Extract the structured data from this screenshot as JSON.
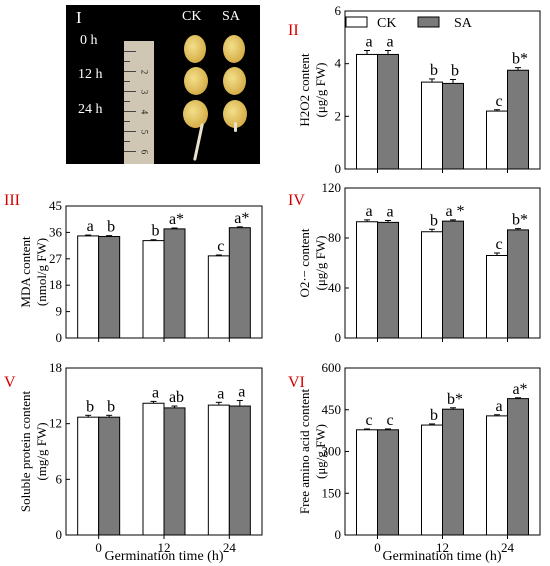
{
  "photo": {
    "panel_label": "I",
    "col_ck": "CK",
    "col_sa": "SA",
    "rows": [
      "0 h",
      "12 h",
      "24 h"
    ],
    "ruler_numbers": [
      "2",
      "3",
      "4",
      "5",
      "6"
    ]
  },
  "legend": {
    "ck": "CK",
    "sa": "SA"
  },
  "shared_xlabel": "Germination time (h)",
  "colors": {
    "ck": "#ffffff",
    "sa": "#7a7a7a",
    "panel_label": "#d40000",
    "axis": "#000000"
  },
  "chart_data": [
    {
      "type": "bar",
      "panel_label": "II",
      "categories": [
        "0",
        "12",
        "24"
      ],
      "ylabel_lines": [
        "H2O2 content",
        "(μg/g FW)"
      ],
      "ylim": [
        0,
        6
      ],
      "yticks": [
        0,
        2,
        4,
        6
      ],
      "series": [
        {
          "name": "CK",
          "values": [
            4.35,
            3.3,
            2.2
          ],
          "errors": [
            0.15,
            0.12,
            0.05
          ],
          "letters": [
            "a",
            "b",
            "c"
          ]
        },
        {
          "name": "SA",
          "values": [
            4.35,
            3.25,
            3.75
          ],
          "errors": [
            0.15,
            0.15,
            0.1
          ],
          "letters": [
            "a",
            "b",
            "b*"
          ]
        }
      ]
    },
    {
      "type": "bar",
      "panel_label": "III",
      "categories": [
        "0",
        "12",
        "24"
      ],
      "ylabel_lines": [
        "MDA content",
        "(nmol/g FW)"
      ],
      "ylim": [
        0,
        45
      ],
      "yticks": [
        0,
        9,
        18,
        27,
        36,
        45
      ],
      "series": [
        {
          "name": "CK",
          "values": [
            34.8,
            33.2,
            28.0
          ],
          "errors": [
            0.3,
            0.3,
            0.3
          ],
          "letters": [
            "a",
            "b",
            "c"
          ]
        },
        {
          "name": "SA",
          "values": [
            34.6,
            37.2,
            37.6
          ],
          "errors": [
            0.3,
            0.3,
            0.3
          ],
          "letters": [
            "b",
            "a*",
            "a*"
          ]
        }
      ]
    },
    {
      "type": "bar",
      "panel_label": "IV",
      "categories": [
        "0",
        "12",
        "24"
      ],
      "ylabel_lines": [
        "O2·− content",
        "(μg/g FW)"
      ],
      "ylim": [
        0,
        120
      ],
      "yticks": [
        0,
        40,
        80,
        120
      ],
      "series": [
        {
          "name": "CK",
          "values": [
            93,
            85,
            66
          ],
          "errors": [
            1.5,
            2,
            2
          ],
          "letters": [
            "a",
            "b",
            "c"
          ]
        },
        {
          "name": "SA",
          "values": [
            92.5,
            93.5,
            86.5
          ],
          "errors": [
            1.5,
            1,
            1
          ],
          "letters": [
            "a",
            "a *",
            "b*"
          ]
        }
      ]
    },
    {
      "type": "bar",
      "panel_label": "V",
      "categories": [
        "0",
        "12",
        "24"
      ],
      "ylabel_lines": [
        "Soluble protein content",
        "(mg/g FW)"
      ],
      "ylim": [
        0,
        18
      ],
      "yticks": [
        0,
        6,
        12,
        18
      ],
      "series": [
        {
          "name": "CK",
          "values": [
            12.7,
            14.2,
            14.0
          ],
          "errors": [
            0.2,
            0.2,
            0.3
          ],
          "letters": [
            "b",
            "a",
            "a"
          ]
        },
        {
          "name": "SA",
          "values": [
            12.7,
            13.7,
            13.9
          ],
          "errors": [
            0.2,
            0.2,
            0.6
          ],
          "letters": [
            "b",
            "ab",
            "a"
          ]
        }
      ]
    },
    {
      "type": "bar",
      "panel_label": "VI",
      "categories": [
        "0",
        "12",
        "24"
      ],
      "ylabel_lines": [
        "Free amino acid content",
        "(μg/g FW)"
      ],
      "ylim": [
        0,
        600
      ],
      "yticks": [
        0,
        150,
        300,
        450,
        600
      ],
      "series": [
        {
          "name": "CK",
          "values": [
            378,
            395,
            428
          ],
          "errors": [
            3,
            4,
            4
          ],
          "letters": [
            "c",
            "b",
            "a"
          ]
        },
        {
          "name": "SA",
          "values": [
            378,
            452,
            490
          ],
          "errors": [
            3,
            5,
            3
          ],
          "letters": [
            "c",
            "b*",
            "a*"
          ]
        }
      ]
    }
  ]
}
